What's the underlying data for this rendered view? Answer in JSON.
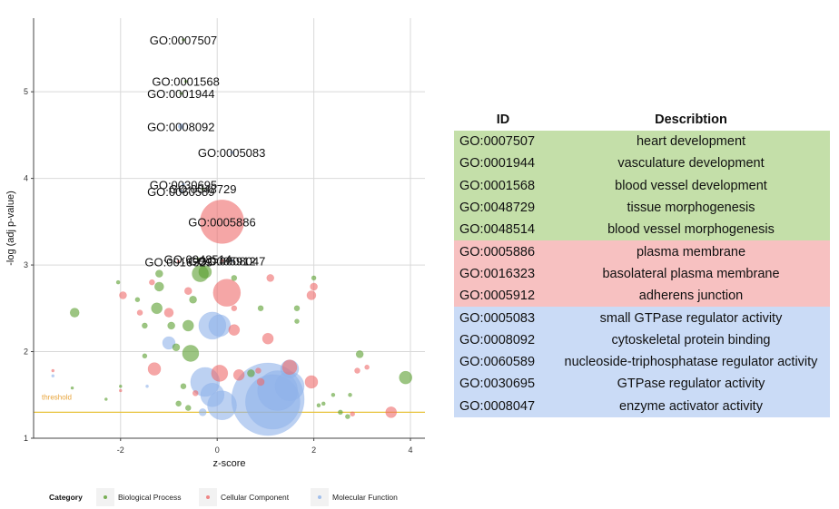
{
  "colors": {
    "bp": "#5a9e2e",
    "cc": "#ee6a6a",
    "mf": "#8fb3ea",
    "bp_bg": "#c4dfa9",
    "cc_bg": "#f7c1c1",
    "mf_bg": "#cadbf6",
    "threshold": "#e8c23a",
    "threshold_text": "#e8a43a",
    "grid": "#d9d9d9"
  },
  "chart_data": {
    "type": "scatter",
    "xlabel": "z-score",
    "ylabel": "-log (adj p-value)",
    "xlim": [
      -3.8,
      4.3
    ],
    "ylim": [
      1,
      5.85
    ],
    "x_ticks": [
      "-2",
      "0",
      "2",
      "4"
    ],
    "y_ticks": [
      "1",
      "2",
      "3",
      "4",
      "5"
    ],
    "threshold": {
      "value": 1.3,
      "label": "threshold"
    },
    "legend": {
      "title": "Category",
      "position": "bottom",
      "entries": [
        "Biological Process",
        "Cellular Component",
        "Molecular Function"
      ]
    },
    "labeled_points": [
      {
        "id": "GO:0007507",
        "x": -0.7,
        "y": 5.6,
        "category": "bp",
        "size": 1.5
      },
      {
        "id": "GO:0001568",
        "x": -0.65,
        "y": 5.12,
        "category": "bp",
        "size": 1.5
      },
      {
        "id": "GO:0001944",
        "x": -0.75,
        "y": 4.98,
        "category": "bp",
        "size": 1.5
      },
      {
        "id": "GO:0008092",
        "x": -0.75,
        "y": 4.6,
        "category": "mf",
        "size": 3
      },
      {
        "id": "GO:0005083",
        "x": 0.3,
        "y": 4.3,
        "category": "mf",
        "size": 1.5
      },
      {
        "id": "GO:0030695",
        "x": -0.7,
        "y": 3.93,
        "category": "mf",
        "size": 1.5
      },
      {
        "id": "GO:0048729",
        "x": -0.3,
        "y": 3.88,
        "category": "bp",
        "size": 1.5
      },
      {
        "id": "GO:0060589",
        "x": -0.75,
        "y": 3.85,
        "category": "mf",
        "size": 1.5
      },
      {
        "id": "GO:0005886",
        "x": 0.1,
        "y": 3.5,
        "category": "cc",
        "size": 24
      },
      {
        "id": "GO:0048514",
        "x": -0.4,
        "y": 3.07,
        "category": "bp",
        "size": 1.5
      },
      {
        "id": "GO:0016323",
        "x": -0.8,
        "y": 3.04,
        "category": "cc",
        "size": 1.5
      },
      {
        "id": "GO:0005912",
        "x": 0.1,
        "y": 3.05,
        "category": "cc",
        "size": 1.5
      },
      {
        "id": "GO:0008047",
        "x": 0.3,
        "y": 3.05,
        "category": "mf",
        "size": 1.5
      }
    ],
    "points": [
      {
        "x": -2.95,
        "y": 2.45,
        "category": "bp",
        "size": 5
      },
      {
        "x": -3.4,
        "y": 1.78,
        "category": "cc",
        "size": 1.5
      },
      {
        "x": -3.4,
        "y": 1.72,
        "category": "mf",
        "size": 1.5
      },
      {
        "x": -3.0,
        "y": 1.58,
        "category": "bp",
        "size": 1.5
      },
      {
        "x": -2.0,
        "y": 1.6,
        "category": "bp",
        "size": 1.5
      },
      {
        "x": -1.5,
        "y": 1.95,
        "category": "bp",
        "size": 2.5
      },
      {
        "x": -2.0,
        "y": 1.55,
        "category": "cc",
        "size": 1.5
      },
      {
        "x": -2.05,
        "y": 2.8,
        "category": "bp",
        "size": 2
      },
      {
        "x": -1.95,
        "y": 2.65,
        "category": "cc",
        "size": 4
      },
      {
        "x": -1.65,
        "y": 2.6,
        "category": "bp",
        "size": 2.5
      },
      {
        "x": -1.6,
        "y": 2.45,
        "category": "cc",
        "size": 3
      },
      {
        "x": -1.5,
        "y": 2.3,
        "category": "bp",
        "size": 3
      },
      {
        "x": -1.35,
        "y": 2.8,
        "category": "cc",
        "size": 3
      },
      {
        "x": -1.25,
        "y": 2.5,
        "category": "bp",
        "size": 6
      },
      {
        "x": -1.2,
        "y": 2.75,
        "category": "bp",
        "size": 5
      },
      {
        "x": -1.2,
        "y": 2.9,
        "category": "bp",
        "size": 4
      },
      {
        "x": -1.3,
        "y": 1.8,
        "category": "cc",
        "size": 7
      },
      {
        "x": -1.0,
        "y": 2.45,
        "category": "cc",
        "size": 5
      },
      {
        "x": -0.95,
        "y": 2.3,
        "category": "bp",
        "size": 4
      },
      {
        "x": -1.0,
        "y": 2.1,
        "category": "mf",
        "size": 7
      },
      {
        "x": -0.85,
        "y": 2.05,
        "category": "bp",
        "size": 4
      },
      {
        "x": -0.6,
        "y": 2.3,
        "category": "bp",
        "size": 6
      },
      {
        "x": -0.55,
        "y": 1.98,
        "category": "bp",
        "size": 9
      },
      {
        "x": -0.7,
        "y": 1.6,
        "category": "bp",
        "size": 3
      },
      {
        "x": -0.8,
        "y": 1.4,
        "category": "bp",
        "size": 3
      },
      {
        "x": -0.6,
        "y": 1.35,
        "category": "bp",
        "size": 3
      },
      {
        "x": -0.45,
        "y": 1.52,
        "category": "cc",
        "size": 3
      },
      {
        "x": -0.3,
        "y": 1.3,
        "category": "mf",
        "size": 4
      },
      {
        "x": -0.5,
        "y": 2.6,
        "category": "bp",
        "size": 4
      },
      {
        "x": -0.6,
        "y": 2.7,
        "category": "cc",
        "size": 4
      },
      {
        "x": -0.35,
        "y": 2.9,
        "category": "bp",
        "size": 9
      },
      {
        "x": -0.25,
        "y": 2.92,
        "category": "bp",
        "size": 7
      },
      {
        "x": 0.2,
        "y": 2.68,
        "category": "cc",
        "size": 15
      },
      {
        "x": -0.1,
        "y": 2.3,
        "category": "mf",
        "size": 15
      },
      {
        "x": 0.05,
        "y": 2.3,
        "category": "mf",
        "size": 12
      },
      {
        "x": 0.35,
        "y": 2.25,
        "category": "cc",
        "size": 6
      },
      {
        "x": 0.35,
        "y": 2.5,
        "category": "cc",
        "size": 3
      },
      {
        "x": 0.35,
        "y": 2.85,
        "category": "bp",
        "size": 3
      },
      {
        "x": -0.25,
        "y": 1.65,
        "category": "mf",
        "size": 16
      },
      {
        "x": -0.1,
        "y": 1.5,
        "category": "mf",
        "size": 13
      },
      {
        "x": 0.05,
        "y": 1.75,
        "category": "cc",
        "size": 9
      },
      {
        "x": 0.1,
        "y": 1.38,
        "category": "mf",
        "size": 16
      },
      {
        "x": 0.45,
        "y": 1.73,
        "category": "cc",
        "size": 6
      },
      {
        "x": 0.7,
        "y": 1.75,
        "category": "bp",
        "size": 4
      },
      {
        "x": 0.85,
        "y": 1.78,
        "category": "cc",
        "size": 3
      },
      {
        "x": 0.9,
        "y": 1.65,
        "category": "cc",
        "size": 4
      },
      {
        "x": 1.05,
        "y": 1.45,
        "category": "mf",
        "size": 40
      },
      {
        "x": 1.15,
        "y": 1.42,
        "category": "mf",
        "size": 30
      },
      {
        "x": 1.25,
        "y": 1.55,
        "category": "mf",
        "size": 22
      },
      {
        "x": 1.5,
        "y": 1.6,
        "category": "mf",
        "size": 16
      },
      {
        "x": 1.5,
        "y": 1.8,
        "category": "mf",
        "size": 10
      },
      {
        "x": 1.5,
        "y": 1.82,
        "category": "cc",
        "size": 8
      },
      {
        "x": 1.05,
        "y": 2.15,
        "category": "cc",
        "size": 6
      },
      {
        "x": 0.9,
        "y": 2.5,
        "category": "bp",
        "size": 3
      },
      {
        "x": 1.1,
        "y": 2.85,
        "category": "cc",
        "size": 4
      },
      {
        "x": 1.65,
        "y": 2.5,
        "category": "bp",
        "size": 3
      },
      {
        "x": 1.65,
        "y": 2.35,
        "category": "bp",
        "size": 2.5
      },
      {
        "x": 1.95,
        "y": 2.65,
        "category": "cc",
        "size": 5
      },
      {
        "x": 2.0,
        "y": 2.75,
        "category": "cc",
        "size": 4
      },
      {
        "x": 2.0,
        "y": 2.85,
        "category": "bp",
        "size": 2.5
      },
      {
        "x": 1.95,
        "y": 1.65,
        "category": "cc",
        "size": 7
      },
      {
        "x": 2.1,
        "y": 1.38,
        "category": "bp",
        "size": 2
      },
      {
        "x": 2.2,
        "y": 1.4,
        "category": "bp",
        "size": 2
      },
      {
        "x": 2.4,
        "y": 1.5,
        "category": "bp",
        "size": 2
      },
      {
        "x": 2.55,
        "y": 1.3,
        "category": "bp",
        "size": 2.5
      },
      {
        "x": 2.7,
        "y": 1.25,
        "category": "bp",
        "size": 2.5
      },
      {
        "x": 2.75,
        "y": 1.5,
        "category": "bp",
        "size": 2
      },
      {
        "x": 2.8,
        "y": 1.28,
        "category": "cc",
        "size": 2.5
      },
      {
        "x": 2.95,
        "y": 1.97,
        "category": "bp",
        "size": 4
      },
      {
        "x": 2.9,
        "y": 1.78,
        "category": "cc",
        "size": 3
      },
      {
        "x": 3.1,
        "y": 1.82,
        "category": "cc",
        "size": 2.5
      },
      {
        "x": 3.6,
        "y": 1.3,
        "category": "cc",
        "size": 6
      },
      {
        "x": 3.9,
        "y": 1.7,
        "category": "bp",
        "size": 7
      },
      {
        "x": -2.3,
        "y": 1.45,
        "category": "bp",
        "size": 1.5
      },
      {
        "x": -1.45,
        "y": 1.6,
        "category": "mf",
        "size": 1.5
      }
    ]
  },
  "table": {
    "headers": [
      "ID",
      "Describtion"
    ],
    "rows": [
      {
        "id": "GO:0007507",
        "desc": "heart development",
        "category": "bp"
      },
      {
        "id": "GO:0001944",
        "desc": "vasculature development",
        "category": "bp"
      },
      {
        "id": "GO:0001568",
        "desc": "blood vessel development",
        "category": "bp"
      },
      {
        "id": "GO:0048729",
        "desc": "tissue morphogenesis",
        "category": "bp"
      },
      {
        "id": "GO:0048514",
        "desc": "blood vessel morphogenesis",
        "category": "bp"
      },
      {
        "id": "GO:0005886",
        "desc": "plasma membrane",
        "category": "cc"
      },
      {
        "id": "GO:0016323",
        "desc": "basolateral plasma membrane",
        "category": "cc"
      },
      {
        "id": "GO:0005912",
        "desc": "adherens junction",
        "category": "cc"
      },
      {
        "id": "GO:0005083",
        "desc": "small GTPase regulator activity",
        "category": "mf"
      },
      {
        "id": "GO:0008092",
        "desc": "cytoskeletal protein binding",
        "category": "mf"
      },
      {
        "id": "GO:0060589",
        "desc": "nucleoside-triphosphatase regulator activity",
        "category": "mf"
      },
      {
        "id": "GO:0030695",
        "desc": "GTPase regulator activity",
        "category": "mf"
      },
      {
        "id": "GO:0008047",
        "desc": "enzyme activator activity",
        "category": "mf"
      }
    ]
  }
}
